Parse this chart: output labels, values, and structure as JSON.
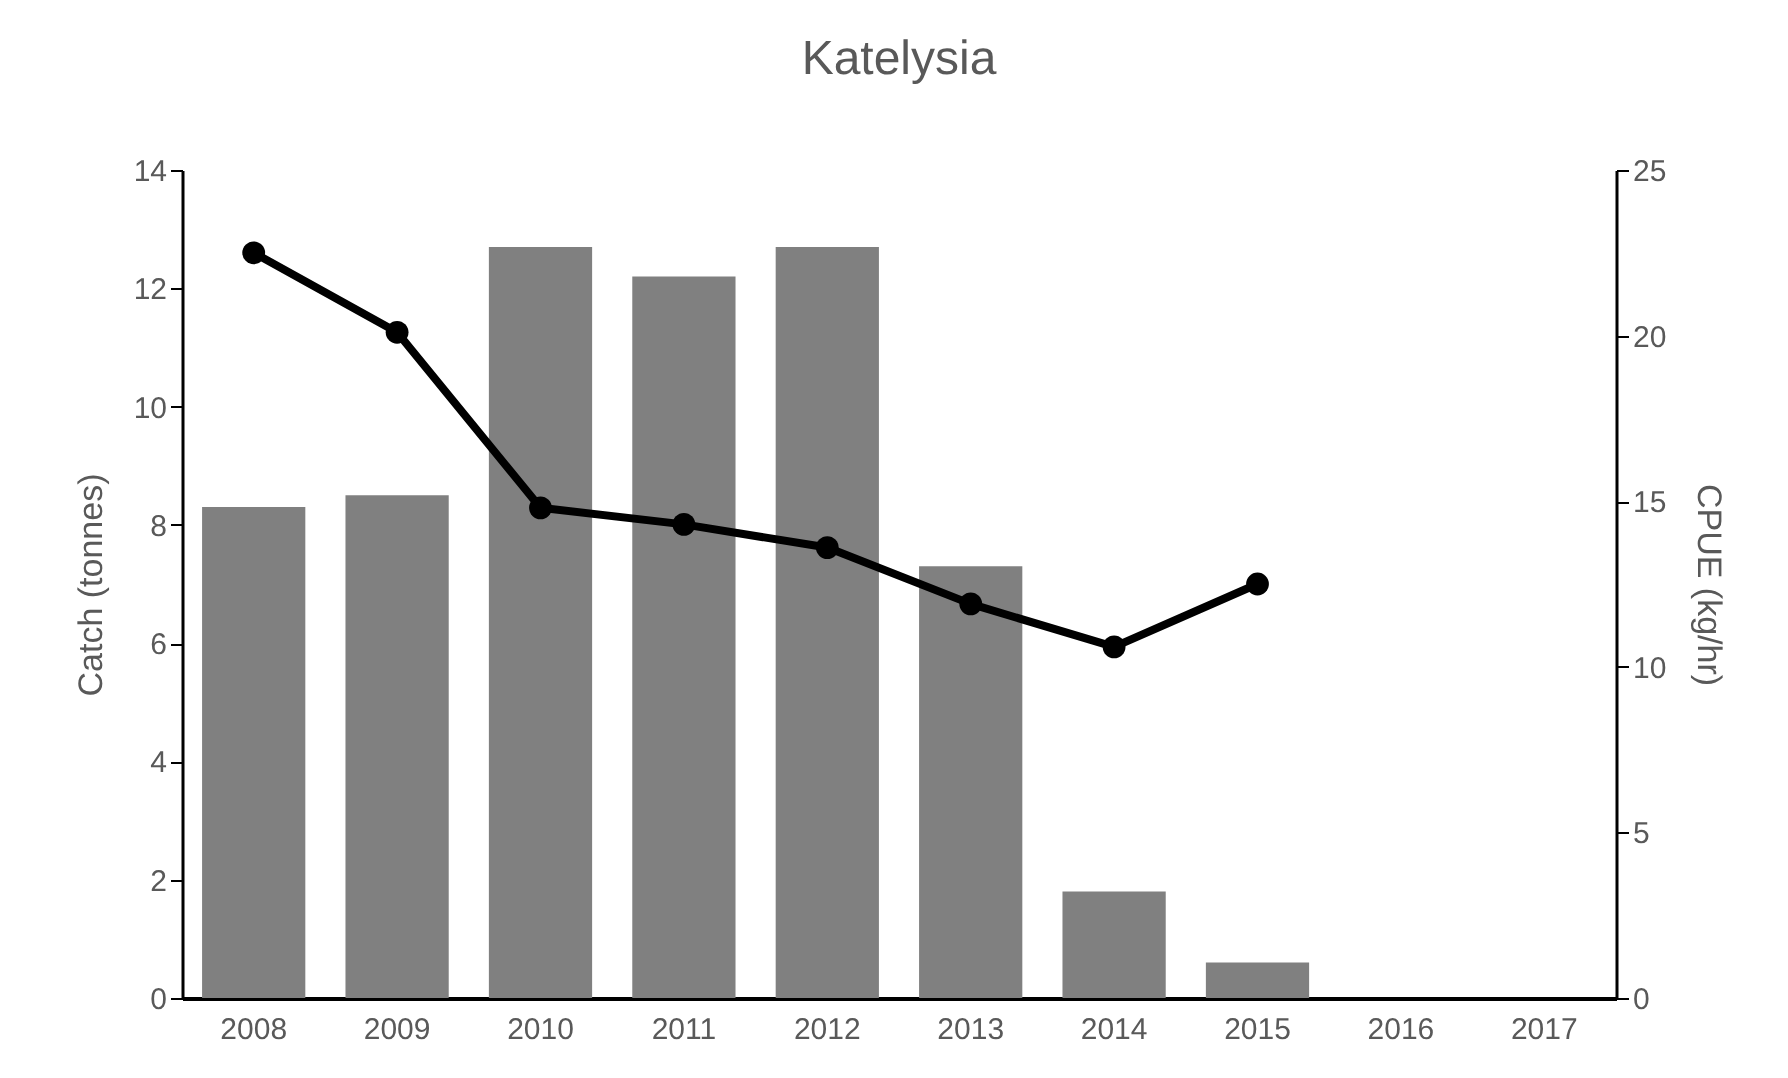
{
  "chart_data": {
    "type": "bar",
    "title": "Katelysia",
    "ylabel": "Catch (tonnes)",
    "y2label": "CPUE  (kg/hr)",
    "categories": [
      "2008",
      "2009",
      "2010",
      "2011",
      "2012",
      "2013",
      "2014",
      "2015",
      "2016",
      "2017"
    ],
    "series": [
      {
        "color": "#808080",
        "values": [
          8.3,
          8.5,
          12.7,
          12.2,
          12.7,
          7.3,
          1.8,
          0.6,
          null,
          null
        ]
      },
      {
        "type": "line",
        "axis": "y2",
        "color": "#000000",
        "marker": "circle",
        "values": [
          22.5,
          20.1,
          14.8,
          14.3,
          13.6,
          11.9,
          10.6,
          12.5,
          null,
          null
        ]
      }
    ],
    "ylim": [
      0,
      14
    ],
    "yticks": [
      0,
      2,
      4,
      6,
      8,
      10,
      12,
      14
    ],
    "y2lim": [
      0,
      25
    ],
    "y2ticks": [
      0,
      5,
      10,
      15,
      20,
      25
    ],
    "grid": false
  }
}
